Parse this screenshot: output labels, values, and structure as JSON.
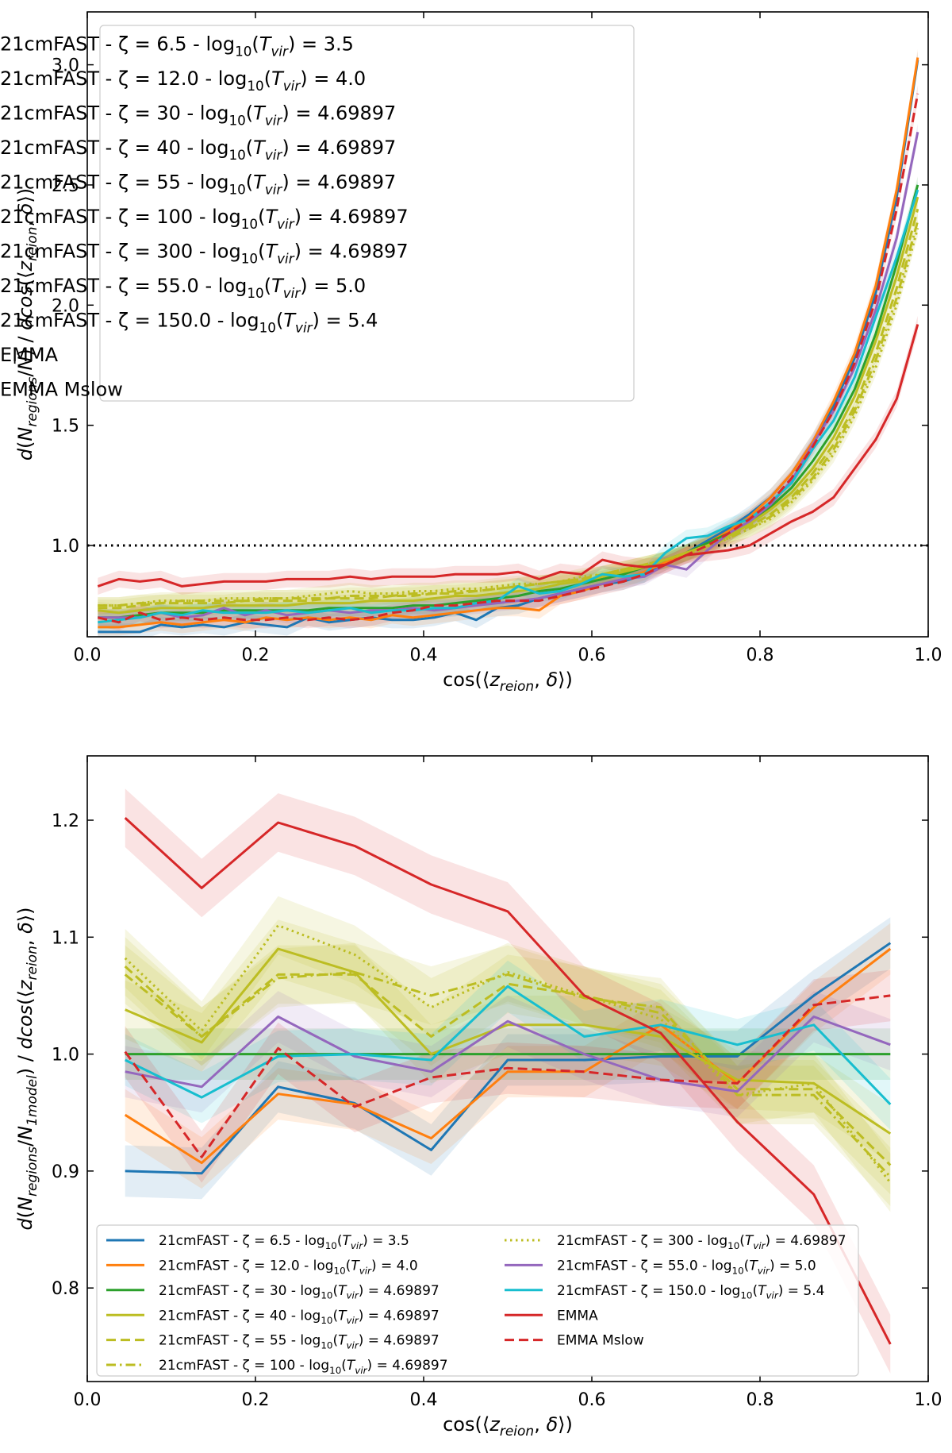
{
  "chart_data": [
    {
      "type": "line",
      "title": "",
      "xlabel": "cos(⟨z_reion, δ⟩)",
      "ylabel": "d(N_regions/N̄) / dcos(⟨z_reion, δ⟩)",
      "xlim": [
        0.0,
        1.0
      ],
      "ylim": [
        0.62,
        3.22
      ],
      "xticks": [
        "0.0",
        "0.2",
        "0.4",
        "0.6",
        "0.8",
        "1.0"
      ],
      "yticks": [
        "1.0",
        "1.5",
        "2.0",
        "2.5",
        "3.0"
      ],
      "grid": false,
      "legend_position": "upper-left",
      "reference_line": {
        "y": 1.0,
        "style": "dotted",
        "color": "#000000"
      },
      "x": [
        0.0125,
        0.0375,
        0.0625,
        0.0875,
        0.1125,
        0.1375,
        0.1625,
        0.1875,
        0.2125,
        0.2375,
        0.2625,
        0.2875,
        0.3125,
        0.3375,
        0.3625,
        0.3875,
        0.4125,
        0.4375,
        0.4625,
        0.4875,
        0.5125,
        0.5375,
        0.5625,
        0.5875,
        0.6125,
        0.6375,
        0.6625,
        0.6875,
        0.7125,
        0.7375,
        0.7625,
        0.7875,
        0.8125,
        0.8375,
        0.8625,
        0.8875,
        0.9125,
        0.9375,
        0.9625,
        0.9875
      ],
      "series": [
        {
          "name": "21cmFAST -  ζ = 6.5 - log10(Tvir) = 3.5",
          "color": "#1f77b4",
          "dash": "solid",
          "values": [
            0.64,
            0.64,
            0.64,
            0.67,
            0.66,
            0.67,
            0.66,
            0.68,
            0.67,
            0.66,
            0.7,
            0.68,
            0.69,
            0.7,
            0.69,
            0.69,
            0.7,
            0.72,
            0.69,
            0.74,
            0.75,
            0.78,
            0.8,
            0.82,
            0.84,
            0.85,
            0.88,
            0.93,
            0.97,
            1.02,
            1.07,
            1.13,
            1.2,
            1.3,
            1.43,
            1.58,
            1.78,
            2.05,
            2.45,
            3.02
          ]
        },
        {
          "name": "21cmFAST -  ζ = 12.0 - log10(Tvir) = 4.0",
          "color": "#ff7f0e",
          "dash": "solid",
          "values": [
            0.66,
            0.66,
            0.67,
            0.68,
            0.67,
            0.68,
            0.69,
            0.68,
            0.7,
            0.69,
            0.7,
            0.69,
            0.7,
            0.69,
            0.71,
            0.7,
            0.71,
            0.72,
            0.73,
            0.74,
            0.74,
            0.73,
            0.79,
            0.81,
            0.84,
            0.86,
            0.89,
            0.93,
            0.97,
            1.01,
            1.06,
            1.12,
            1.2,
            1.3,
            1.43,
            1.6,
            1.8,
            2.08,
            2.48,
            3.03
          ]
        },
        {
          "name": "21cmFAST -  ζ = 30 - log10(Tvir) = 4.69897",
          "color": "#2ca02c",
          "dash": "solid",
          "values": [
            0.7,
            0.7,
            0.71,
            0.72,
            0.72,
            0.72,
            0.73,
            0.73,
            0.73,
            0.73,
            0.73,
            0.74,
            0.74,
            0.74,
            0.74,
            0.75,
            0.75,
            0.76,
            0.77,
            0.78,
            0.79,
            0.81,
            0.82,
            0.84,
            0.86,
            0.88,
            0.91,
            0.94,
            0.97,
            1.01,
            1.05,
            1.1,
            1.16,
            1.24,
            1.35,
            1.48,
            1.65,
            1.88,
            2.17,
            2.5
          ]
        },
        {
          "name": "21cmFAST -  ζ = 40 - log10(Tvir) = 4.69897",
          "color": "#bcbd22",
          "dash": "solid",
          "values": [
            0.73,
            0.72,
            0.73,
            0.74,
            0.74,
            0.74,
            0.75,
            0.75,
            0.75,
            0.75,
            0.76,
            0.76,
            0.76,
            0.77,
            0.77,
            0.77,
            0.78,
            0.79,
            0.79,
            0.8,
            0.81,
            0.82,
            0.84,
            0.85,
            0.87,
            0.89,
            0.91,
            0.94,
            0.97,
            1.0,
            1.04,
            1.09,
            1.15,
            1.22,
            1.32,
            1.45,
            1.62,
            1.85,
            2.12,
            2.45
          ]
        },
        {
          "name": "21cmFAST -  ζ = 55 - log10(Tvir) = 4.69897",
          "color": "#bcbd22",
          "dash": "dashed",
          "values": [
            0.74,
            0.74,
            0.75,
            0.76,
            0.76,
            0.76,
            0.76,
            0.77,
            0.77,
            0.77,
            0.77,
            0.78,
            0.78,
            0.78,
            0.79,
            0.79,
            0.8,
            0.8,
            0.81,
            0.82,
            0.83,
            0.84,
            0.85,
            0.86,
            0.88,
            0.9,
            0.92,
            0.94,
            0.97,
            1.0,
            1.04,
            1.08,
            1.13,
            1.2,
            1.3,
            1.42,
            1.58,
            1.8,
            2.07,
            2.4
          ]
        },
        {
          "name": "21cmFAST -  ζ = 100 - log10(Tvir) = 4.69897",
          "color": "#bcbd22",
          "dash": "dashdot",
          "values": [
            0.75,
            0.75,
            0.76,
            0.76,
            0.77,
            0.77,
            0.77,
            0.77,
            0.78,
            0.78,
            0.78,
            0.78,
            0.79,
            0.79,
            0.79,
            0.8,
            0.8,
            0.81,
            0.81,
            0.82,
            0.83,
            0.84,
            0.85,
            0.86,
            0.88,
            0.9,
            0.92,
            0.94,
            0.97,
            1.0,
            1.03,
            1.07,
            1.12,
            1.19,
            1.28,
            1.4,
            1.56,
            1.77,
            2.03,
            2.35
          ]
        },
        {
          "name": "21cmFAST -  ζ = 300 - log10(Tvir) = 4.69897",
          "color": "#bcbd22",
          "dash": "dotted",
          "values": [
            0.75,
            0.75,
            0.76,
            0.77,
            0.77,
            0.77,
            0.78,
            0.78,
            0.78,
            0.78,
            0.79,
            0.8,
            0.81,
            0.8,
            0.8,
            0.81,
            0.81,
            0.82,
            0.82,
            0.83,
            0.84,
            0.84,
            0.85,
            0.87,
            0.88,
            0.9,
            0.92,
            0.94,
            0.96,
            0.99,
            1.03,
            1.07,
            1.11,
            1.18,
            1.27,
            1.38,
            1.54,
            1.74,
            2.0,
            2.32
          ]
        },
        {
          "name": "21cmFAST -  ζ = 55.0 - log10(Tvir) = 5.0",
          "color": "#9467bd",
          "dash": "solid",
          "values": [
            0.7,
            0.7,
            0.7,
            0.72,
            0.7,
            0.71,
            0.74,
            0.71,
            0.73,
            0.71,
            0.72,
            0.73,
            0.72,
            0.73,
            0.73,
            0.74,
            0.73,
            0.74,
            0.75,
            0.76,
            0.77,
            0.78,
            0.8,
            0.82,
            0.84,
            0.86,
            0.87,
            0.92,
            0.9,
            0.98,
            1.05,
            1.1,
            1.17,
            1.27,
            1.42,
            1.56,
            1.74,
            1.98,
            2.28,
            2.72
          ]
        },
        {
          "name": "21cmFAST -  ζ = 150.0 - log10(Tvir) = 5.4",
          "color": "#17becf",
          "dash": "solid",
          "values": [
            0.68,
            0.69,
            0.7,
            0.72,
            0.71,
            0.73,
            0.72,
            0.72,
            0.72,
            0.73,
            0.72,
            0.73,
            0.74,
            0.72,
            0.73,
            0.73,
            0.74,
            0.74,
            0.76,
            0.77,
            0.83,
            0.8,
            0.81,
            0.84,
            0.88,
            0.87,
            0.88,
            0.97,
            1.03,
            1.04,
            1.08,
            1.11,
            1.18,
            1.26,
            1.4,
            1.52,
            1.7,
            1.95,
            2.2,
            2.48
          ]
        },
        {
          "name": "EMMA",
          "color": "#d62728",
          "dash": "solid",
          "values": [
            0.83,
            0.86,
            0.85,
            0.86,
            0.83,
            0.84,
            0.85,
            0.85,
            0.85,
            0.86,
            0.86,
            0.86,
            0.87,
            0.86,
            0.87,
            0.87,
            0.87,
            0.88,
            0.88,
            0.88,
            0.89,
            0.86,
            0.89,
            0.88,
            0.94,
            0.92,
            0.91,
            0.92,
            0.96,
            0.97,
            0.98,
            1.0,
            1.05,
            1.1,
            1.14,
            1.2,
            1.32,
            1.44,
            1.61,
            1.92
          ]
        },
        {
          "name": "EMMA Mslow",
          "color": "#d62728",
          "dash": "dashed",
          "values": [
            0.7,
            0.68,
            0.72,
            0.69,
            0.7,
            0.69,
            0.7,
            0.69,
            0.69,
            0.7,
            0.69,
            0.7,
            0.69,
            0.7,
            0.72,
            0.73,
            0.75,
            0.75,
            0.76,
            0.77,
            0.77,
            0.77,
            0.79,
            0.81,
            0.83,
            0.85,
            0.88,
            0.92,
            0.96,
            1.0,
            1.05,
            1.11,
            1.18,
            1.28,
            1.41,
            1.56,
            1.76,
            2.02,
            2.4,
            2.88
          ]
        }
      ]
    },
    {
      "type": "line",
      "title": "",
      "xlabel": "cos(⟨z_reion, δ⟩)",
      "ylabel": "d(N_regions/N_1model) / dcos(⟨z_reion, δ⟩)",
      "xlim": [
        0.0,
        1.0
      ],
      "ylim": [
        0.72,
        1.255
      ],
      "xticks": [
        "0.0",
        "0.2",
        "0.4",
        "0.6",
        "0.8",
        "1.0"
      ],
      "yticks": [
        "0.8",
        "0.9",
        "1.0",
        "1.1",
        "1.2"
      ],
      "grid": false,
      "legend_position": "lower-left",
      "x": [
        0.045,
        0.136,
        0.227,
        0.318,
        0.409,
        0.5,
        0.591,
        0.682,
        0.773,
        0.864,
        0.955
      ],
      "series": [
        {
          "name": "21cmFAST -  ζ = 6.5 - log10(Tvir) = 3.5",
          "color": "#1f77b4",
          "dash": "solid",
          "values": [
            0.9,
            0.898,
            0.972,
            0.958,
            0.918,
            0.995,
            0.995,
            0.998,
            0.998,
            1.05,
            1.095
          ]
        },
        {
          "name": "21cmFAST -  ζ = 12.0 - log10(Tvir) = 4.0",
          "color": "#ff7f0e",
          "dash": "solid",
          "values": [
            0.948,
            0.907,
            0.966,
            0.957,
            0.928,
            0.985,
            0.985,
            1.025,
            0.975,
            1.04,
            1.09
          ]
        },
        {
          "name": "21cmFAST -  ζ = 30 - log10(Tvir) = 4.69897",
          "color": "#2ca02c",
          "dash": "solid",
          "values": [
            1.0,
            1.0,
            1.0,
            1.0,
            1.0,
            1.0,
            1.0,
            1.0,
            1.0,
            1.0,
            1.0
          ]
        },
        {
          "name": "21cmFAST -  ζ = 40 - log10(Tvir) = 4.69897",
          "color": "#bcbd22",
          "dash": "solid",
          "values": [
            1.038,
            1.01,
            1.09,
            1.07,
            1.0,
            1.025,
            1.025,
            1.015,
            0.978,
            0.975,
            0.932
          ]
        },
        {
          "name": "21cmFAST -  ζ = 55 - log10(Tvir) = 4.69897",
          "color": "#bcbd22",
          "dash": "dashed",
          "values": [
            1.075,
            1.015,
            1.068,
            1.068,
            1.015,
            1.06,
            1.05,
            1.035,
            0.97,
            0.97,
            0.905
          ]
        },
        {
          "name": "21cmFAST -  ζ = 100 - log10(Tvir) = 4.69897",
          "color": "#bcbd22",
          "dash": "dashdot",
          "values": [
            1.068,
            1.015,
            1.065,
            1.07,
            1.05,
            1.068,
            1.048,
            1.04,
            0.965,
            0.965,
            0.895
          ]
        },
        {
          "name": "21cmFAST -  ζ = 300 - log10(Tvir) = 4.69897",
          "color": "#bcbd22",
          "dash": "dotted",
          "values": [
            1.082,
            1.02,
            1.11,
            1.085,
            1.04,
            1.07,
            1.05,
            1.03,
            0.965,
            0.975,
            0.89
          ]
        },
        {
          "name": "21cmFAST -  ζ = 55.0 - log10(Tvir) = 5.0",
          "color": "#9467bd",
          "dash": "solid",
          "values": [
            0.985,
            0.972,
            1.032,
            0.998,
            0.985,
            1.028,
            1.0,
            0.978,
            0.968,
            1.032,
            1.008
          ]
        },
        {
          "name": "21cmFAST -  ζ = 150.0 - log10(Tvir) = 5.4",
          "color": "#17becf",
          "dash": "solid",
          "values": [
            0.995,
            0.963,
            0.998,
            1.0,
            0.995,
            1.058,
            1.015,
            1.025,
            1.008,
            1.025,
            0.957
          ]
        },
        {
          "name": "EMMA",
          "color": "#d62728",
          "dash": "solid",
          "values": [
            1.202,
            1.142,
            1.198,
            1.178,
            1.145,
            1.122,
            1.05,
            1.018,
            0.942,
            0.88,
            0.752
          ]
        },
        {
          "name": "EMMA Mslow",
          "color": "#d62728",
          "dash": "dashed",
          "values": [
            1.002,
            0.912,
            1.005,
            0.955,
            0.98,
            0.988,
            0.985,
            0.978,
            0.975,
            1.042,
            1.05
          ]
        }
      ]
    }
  ]
}
